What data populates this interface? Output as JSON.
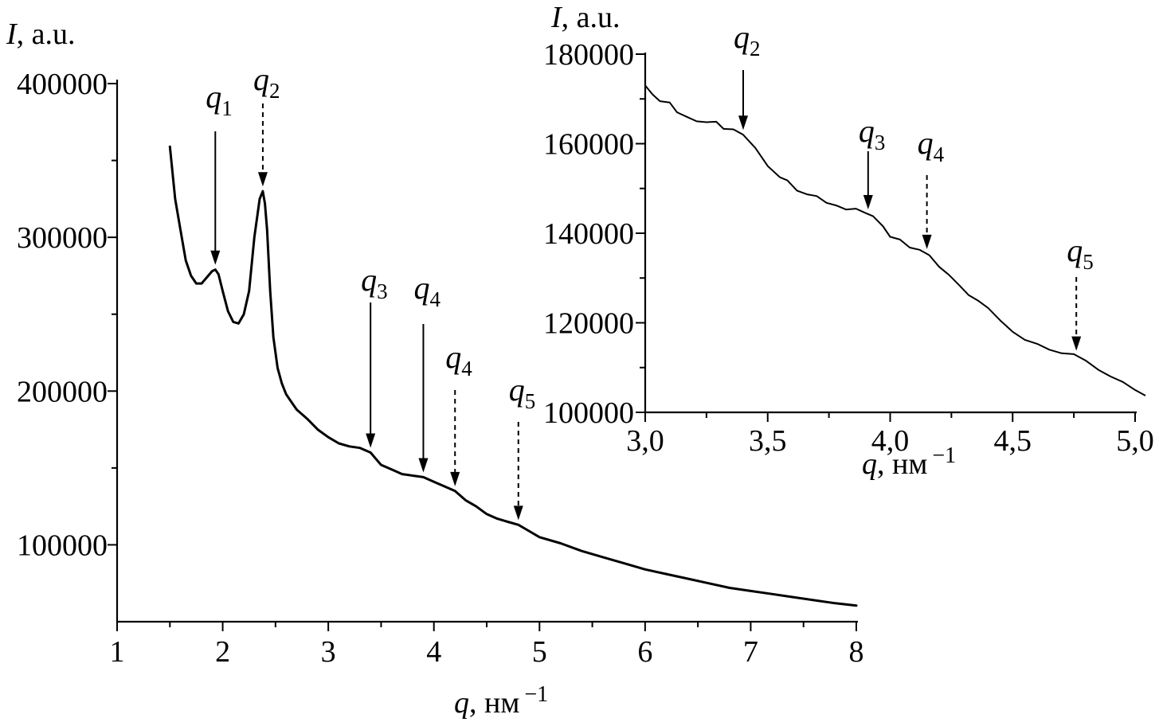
{
  "chart_data": [
    {
      "id": "main",
      "type": "line",
      "ylabel_var": "I",
      "ylabel_unit": ", a.u.",
      "xlabel_var": "q",
      "xlabel_unit": ", нм",
      "xlabel_exp": "−1",
      "xlim": [
        1,
        8
      ],
      "ylim": [
        50000,
        400000
      ],
      "xticks": [
        1,
        2,
        3,
        4,
        5,
        6,
        7,
        8
      ],
      "xtick_labels": [
        "1",
        "2",
        "3",
        "4",
        "5",
        "6",
        "7",
        "8"
      ],
      "yticks": [
        100000,
        200000,
        300000,
        400000
      ],
      "ytick_labels": [
        "100000",
        "200000",
        "300000",
        "400000"
      ],
      "series": [
        {
          "x": [
            1.5,
            1.55,
            1.6,
            1.65,
            1.7,
            1.75,
            1.8,
            1.85,
            1.9,
            1.93,
            1.96,
            2.0,
            2.05,
            2.1,
            2.15,
            2.2,
            2.25,
            2.3,
            2.35,
            2.38,
            2.4,
            2.42,
            2.45,
            2.48,
            2.52,
            2.56,
            2.6,
            2.65,
            2.7,
            2.8,
            2.9,
            3.0,
            3.1,
            3.2,
            3.3,
            3.4,
            3.45,
            3.5,
            3.6,
            3.7,
            3.8,
            3.9,
            4.0,
            4.1,
            4.2,
            4.3,
            4.4,
            4.5,
            4.6,
            4.7,
            4.8,
            4.9,
            5.0,
            5.2,
            5.4,
            5.6,
            5.8,
            6.0,
            6.2,
            6.4,
            6.6,
            6.8,
            7.0,
            7.2,
            7.4,
            7.6,
            7.8,
            8.0
          ],
          "y": [
            359000,
            325000,
            305000,
            285000,
            275000,
            270000,
            270000,
            274000,
            278000,
            279000,
            276000,
            265000,
            252000,
            245000,
            244000,
            250000,
            265000,
            300000,
            325000,
            330000,
            322000,
            305000,
            265000,
            235000,
            215000,
            205000,
            198000,
            193000,
            188000,
            182000,
            175000,
            170000,
            166000,
            164000,
            163000,
            160000,
            156000,
            152000,
            149000,
            146000,
            145000,
            144000,
            141000,
            138000,
            135000,
            129000,
            125000,
            120000,
            117000,
            115000,
            113000,
            109000,
            105000,
            101000,
            96000,
            92000,
            88000,
            84000,
            81000,
            78000,
            75000,
            72000,
            70000,
            68000,
            66000,
            64000,
            62000,
            60500
          ]
        }
      ],
      "annotations": [
        {
          "base": "q",
          "sub": "1",
          "x": 1.93,
          "style": "solid"
        },
        {
          "base": "q",
          "sub": "2",
          "x": 2.38,
          "style": "dashed"
        },
        {
          "base": "q",
          "sub": "3",
          "x": 3.4,
          "style": "solid"
        },
        {
          "base": "q",
          "sub": "4",
          "x": 3.9,
          "style": "solid"
        },
        {
          "base": "q",
          "sub": "4",
          "x": 4.2,
          "style": "dashed"
        },
        {
          "base": "q",
          "sub": "5",
          "x": 4.8,
          "style": "dashed"
        }
      ]
    },
    {
      "id": "inset",
      "type": "line",
      "ylabel_var": "I",
      "ylabel_unit": ", a.u.",
      "xlabel_var": "q",
      "xlabel_unit": ", нм",
      "xlabel_exp": "−1",
      "xlim": [
        3.0,
        5.0
      ],
      "ylim": [
        100000,
        180000
      ],
      "xticks": [
        3.0,
        3.5,
        4.0,
        4.5,
        5.0
      ],
      "xtick_labels": [
        "3,0",
        "3,5",
        "4,0",
        "4,5",
        "5,0"
      ],
      "yticks": [
        100000,
        120000,
        140000,
        160000,
        180000
      ],
      "ytick_labels": [
        "100000",
        "120000",
        "140000",
        "160000",
        "180000"
      ],
      "series": [
        {
          "x": [
            3.0,
            3.03,
            3.06,
            3.1,
            3.13,
            3.17,
            3.21,
            3.25,
            3.29,
            3.32,
            3.36,
            3.4,
            3.45,
            3.5,
            3.55,
            3.58,
            3.62,
            3.66,
            3.7,
            3.74,
            3.78,
            3.82,
            3.86,
            3.9,
            3.93,
            3.97,
            4.0,
            4.04,
            4.08,
            4.12,
            4.16,
            4.2,
            4.24,
            4.28,
            4.32,
            4.36,
            4.4,
            4.45,
            4.5,
            4.55,
            4.6,
            4.65,
            4.7,
            4.75,
            4.8,
            4.85,
            4.9,
            4.95,
            5.0,
            5.04
          ],
          "y": [
            173000,
            171000,
            169500,
            169200,
            167000,
            166000,
            165000,
            164800,
            164900,
            163300,
            163200,
            162000,
            159000,
            155000,
            152500,
            151800,
            149500,
            148700,
            148300,
            146800,
            146200,
            145300,
            145500,
            144500,
            143800,
            141600,
            139200,
            138600,
            136800,
            136300,
            135100,
            132500,
            130700,
            128500,
            126200,
            124900,
            123300,
            120500,
            118000,
            116200,
            115300,
            114000,
            113200,
            113000,
            111500,
            109500,
            108000,
            106800,
            105000,
            103800
          ]
        }
      ],
      "annotations": [
        {
          "base": "q",
          "sub": "2",
          "x": 3.4,
          "style": "solid"
        },
        {
          "base": "q",
          "sub": "3",
          "x": 3.91,
          "style": "solid"
        },
        {
          "base": "q",
          "sub": "4",
          "x": 4.15,
          "style": "dashed"
        },
        {
          "base": "q",
          "sub": "5",
          "x": 4.76,
          "style": "dashed"
        }
      ]
    }
  ]
}
